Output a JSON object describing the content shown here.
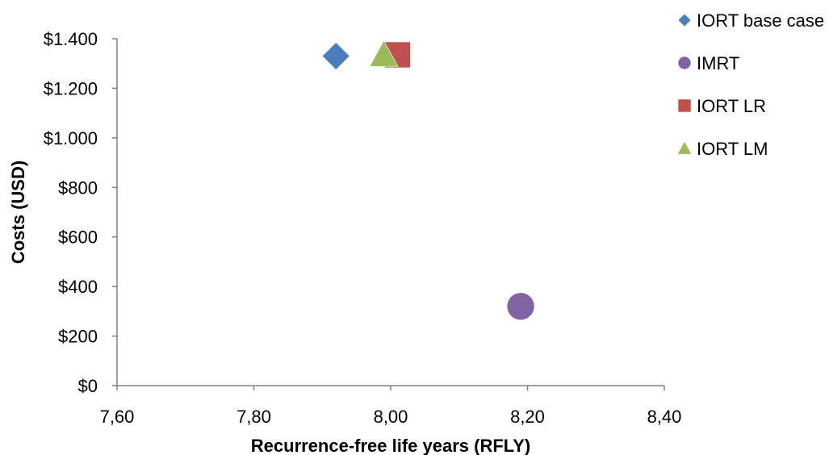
{
  "chart_data": {
    "type": "scatter",
    "title": "",
    "xlabel": "Recurrence-free life years (RFLY)",
    "ylabel": "Costs (USD)",
    "xlim": [
      7.6,
      8.4
    ],
    "ylim": [
      0,
      1400
    ],
    "x_ticks": [
      7.6,
      7.8,
      8.0,
      8.2,
      8.4
    ],
    "x_tick_labels": [
      "7,60",
      "7,80",
      "8,00",
      "8,20",
      "8,40"
    ],
    "y_ticks": [
      0,
      200,
      400,
      600,
      800,
      1000,
      1200,
      1400
    ],
    "y_tick_labels": [
      "$0",
      "$200",
      "$400",
      "$600",
      "$800",
      "$1.000",
      "$1.200",
      "$1.400"
    ],
    "grid": false,
    "legend_position": "top-right",
    "series": [
      {
        "name": "IORT base case",
        "marker": "diamond",
        "color": "#4a7ebb",
        "points": [
          {
            "x": 7.92,
            "y": 1330
          }
        ]
      },
      {
        "name": "IMRT",
        "marker": "circle",
        "color": "#8064a2",
        "points": [
          {
            "x": 8.19,
            "y": 320
          }
        ]
      },
      {
        "name": "IORT LR",
        "marker": "square",
        "color": "#c0504d",
        "points": [
          {
            "x": 8.01,
            "y": 1335
          }
        ]
      },
      {
        "name": "IORT LM",
        "marker": "triangle",
        "color": "#9bbb59",
        "points": [
          {
            "x": 7.99,
            "y": 1335
          }
        ]
      }
    ]
  }
}
